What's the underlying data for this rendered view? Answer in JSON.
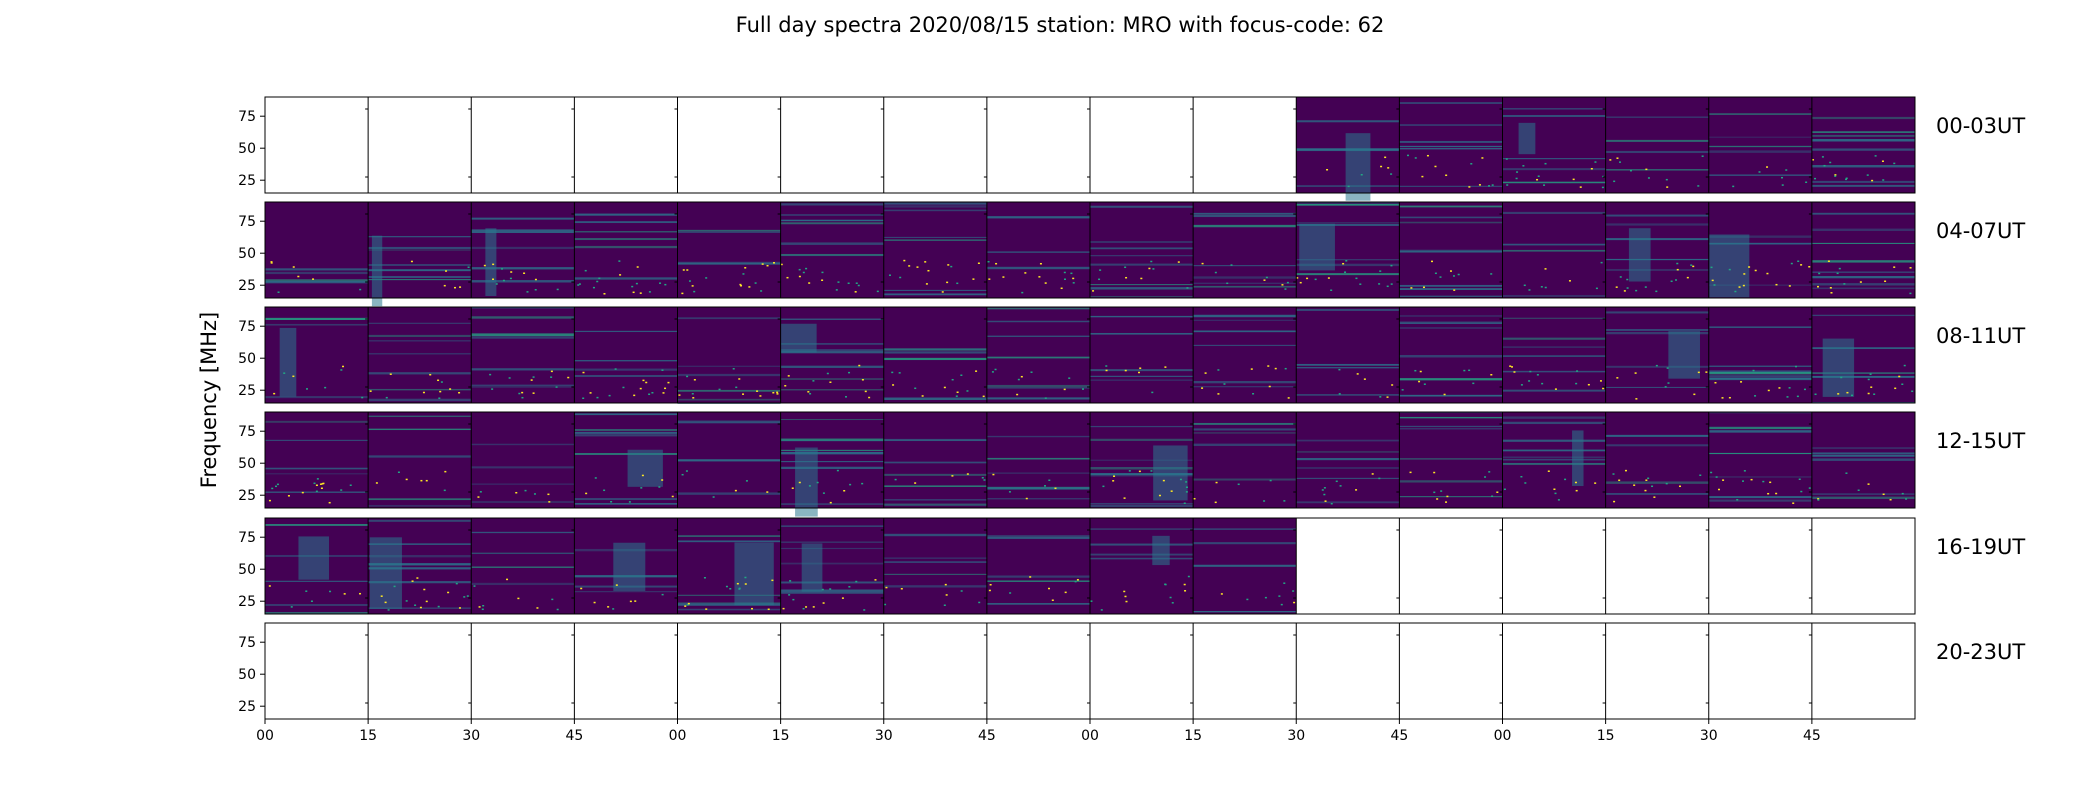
{
  "chart_data": {
    "type": "heatmap",
    "title": "Full day spectra 2020/08/15 station: MRO with focus-code: 62",
    "ylabel": "Frequency [MHz]",
    "y_ticks": [
      "75",
      "50",
      "25"
    ],
    "ylim": [
      15,
      90
    ],
    "x_ticks": [
      "00",
      "15",
      "30",
      "45",
      "00",
      "15",
      "30",
      "45",
      "00",
      "15",
      "30",
      "45",
      "00",
      "15",
      "30",
      "45"
    ],
    "columns_per_row": 16,
    "rows": [
      {
        "label": "00-03UT",
        "filled": [
          10,
          11,
          12,
          13,
          14,
          15
        ]
      },
      {
        "label": "04-07UT",
        "filled": [
          0,
          1,
          2,
          3,
          4,
          5,
          6,
          7,
          8,
          9,
          10,
          11,
          12,
          13,
          14,
          15
        ]
      },
      {
        "label": "08-11UT",
        "filled": [
          0,
          1,
          2,
          3,
          4,
          5,
          6,
          7,
          8,
          9,
          10,
          11,
          12,
          13,
          14,
          15
        ]
      },
      {
        "label": "12-15UT",
        "filled": [
          0,
          1,
          2,
          3,
          4,
          5,
          6,
          7,
          8,
          9,
          10,
          11,
          12,
          13,
          14,
          15
        ]
      },
      {
        "label": "16-19UT",
        "filled": [
          0,
          1,
          2,
          3,
          4,
          5,
          6,
          7,
          8,
          9
        ]
      },
      {
        "label": "20-23UT",
        "filled": []
      }
    ],
    "colors": {
      "background": "#440154",
      "band": "#2a788e",
      "bright": "#22a884",
      "spot": "#fde725"
    }
  }
}
